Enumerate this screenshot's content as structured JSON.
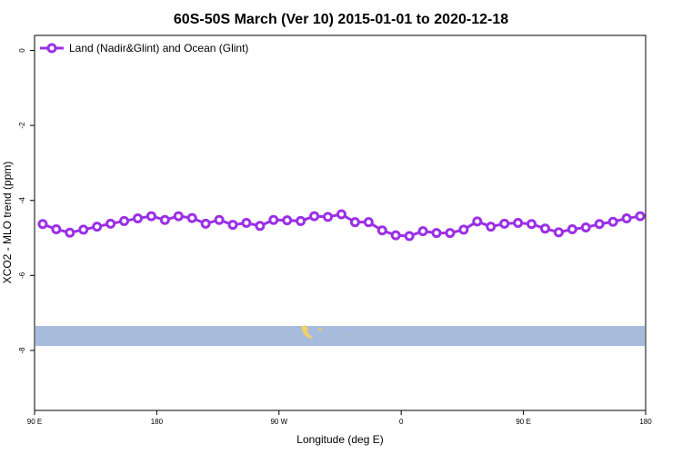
{
  "chart_data": {
    "type": "line",
    "title": "60S-50S March (Ver 10)   2015-01-01 to 2020-12-18",
    "xlabel": "Longitude (deg E)",
    "ylabel": "XCO2 - MLO trend (ppm)",
    "xlim": [
      90,
      540
    ],
    "ylim": [
      -9.6,
      0.4
    ],
    "x_ticks": [
      {
        "value": 90,
        "label": "90 E"
      },
      {
        "value": 180,
        "label": "180"
      },
      {
        "value": 270,
        "label": "90 W"
      },
      {
        "value": 360,
        "label": "0"
      },
      {
        "value": 450,
        "label": "90 E"
      },
      {
        "value": 540,
        "label": "180"
      }
    ],
    "y_ticks": [
      0,
      -2,
      -4,
      -6,
      -8
    ],
    "legend": {
      "position": "top-left"
    },
    "series": [
      {
        "name": "Land (Nadir&Glint) and Ocean (Glint)",
        "color": "#9b30e6",
        "x": [
          96,
          106,
          116,
          126,
          136,
          146,
          156,
          166,
          176,
          186,
          196,
          206,
          216,
          226,
          236,
          246,
          256,
          266,
          276,
          286,
          296,
          306,
          316,
          326,
          336,
          346,
          356,
          366,
          376,
          386,
          396,
          406,
          416,
          426,
          436,
          446,
          456,
          466,
          476,
          486,
          496,
          506,
          516,
          526,
          536
        ],
        "values": [
          -4.63,
          -4.77,
          -4.86,
          -4.78,
          -4.7,
          -4.62,
          -4.55,
          -4.48,
          -4.42,
          -4.52,
          -4.42,
          -4.47,
          -4.62,
          -4.52,
          -4.65,
          -4.6,
          -4.68,
          -4.52,
          -4.53,
          -4.55,
          -4.42,
          -4.44,
          -4.37,
          -4.58,
          -4.58,
          -4.8,
          -4.93,
          -4.95,
          -4.82,
          -4.87,
          -4.87,
          -4.78,
          -4.56,
          -4.7,
          -4.62,
          -4.6,
          -4.63,
          -4.75,
          -4.85,
          -4.77,
          -4.72,
          -4.63,
          -4.57,
          -4.48,
          -4.42
        ]
      }
    ],
    "colors": {
      "band": "#a7bcdc",
      "land": "#f0cf6a"
    }
  }
}
